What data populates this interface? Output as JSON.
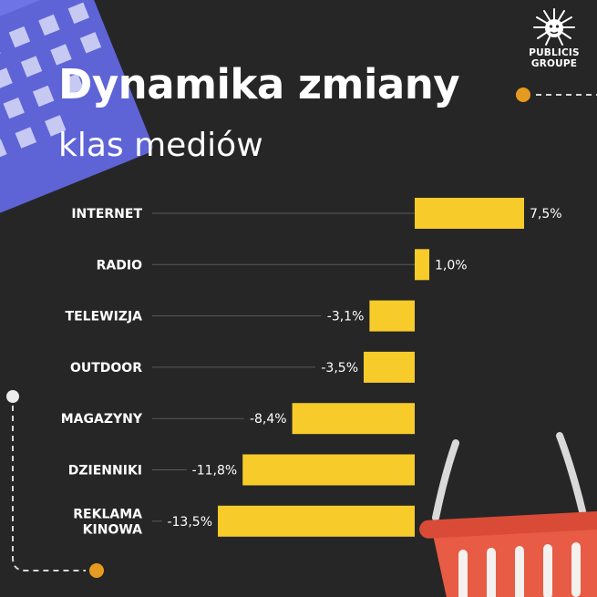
{
  "title": "Dynamika zmiany",
  "subtitle": "klas mediów",
  "brand": {
    "line1": "PUBLICIS",
    "line2": "GROUPE"
  },
  "colors": {
    "background": "#262626",
    "bar": "#F7CB2A",
    "text": "#FFFFFF",
    "accent": "#E69A1F",
    "calendar": "#5E64D6",
    "basket": "#E85B44"
  },
  "chart_data": {
    "type": "bar",
    "orientation": "horizontal",
    "categories": [
      "INTERNET",
      "RADIO",
      "TELEWIZJA",
      "OUTDOOR",
      "MAGAZYNY",
      "DZIENNIKI",
      [
        "REKLAMA",
        "KINOWA"
      ]
    ],
    "values": [
      7.5,
      1.0,
      -3.1,
      -3.5,
      -8.4,
      -11.8,
      -13.5
    ],
    "value_labels": [
      "7,5%",
      "1,0%",
      "-3,1%",
      "-3,5%",
      "-8,4%",
      "-11,8%",
      "-13,5%"
    ],
    "unit": "%",
    "xlim": [
      -13.5,
      7.5
    ],
    "grid": false,
    "legend": "none"
  }
}
